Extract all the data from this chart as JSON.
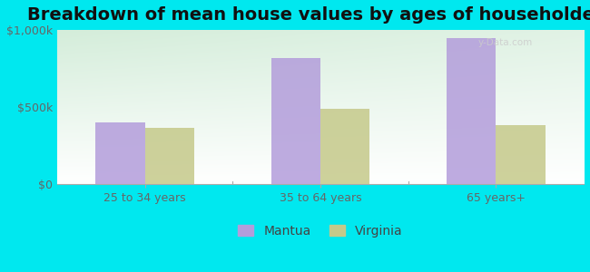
{
  "title": "Breakdown of mean house values by ages of householders",
  "categories": [
    "25 to 34 years",
    "35 to 64 years",
    "65 years+"
  ],
  "mantua_values": [
    400000,
    820000,
    950000
  ],
  "virginia_values": [
    365000,
    490000,
    385000
  ],
  "mantua_color": "#b39ddb",
  "virginia_color": "#c5c98a",
  "background_outer": "#00e8ef",
  "ylim": [
    0,
    1000000
  ],
  "yticks": [
    0,
    500000,
    1000000
  ],
  "ytick_labels": [
    "$0",
    "$500k",
    "$1,000k"
  ],
  "bar_width": 0.28,
  "legend_labels": [
    "Mantua",
    "Virginia"
  ],
  "watermark": "y-Data.com",
  "title_fontsize": 14,
  "tick_fontsize": 9,
  "legend_fontsize": 10
}
